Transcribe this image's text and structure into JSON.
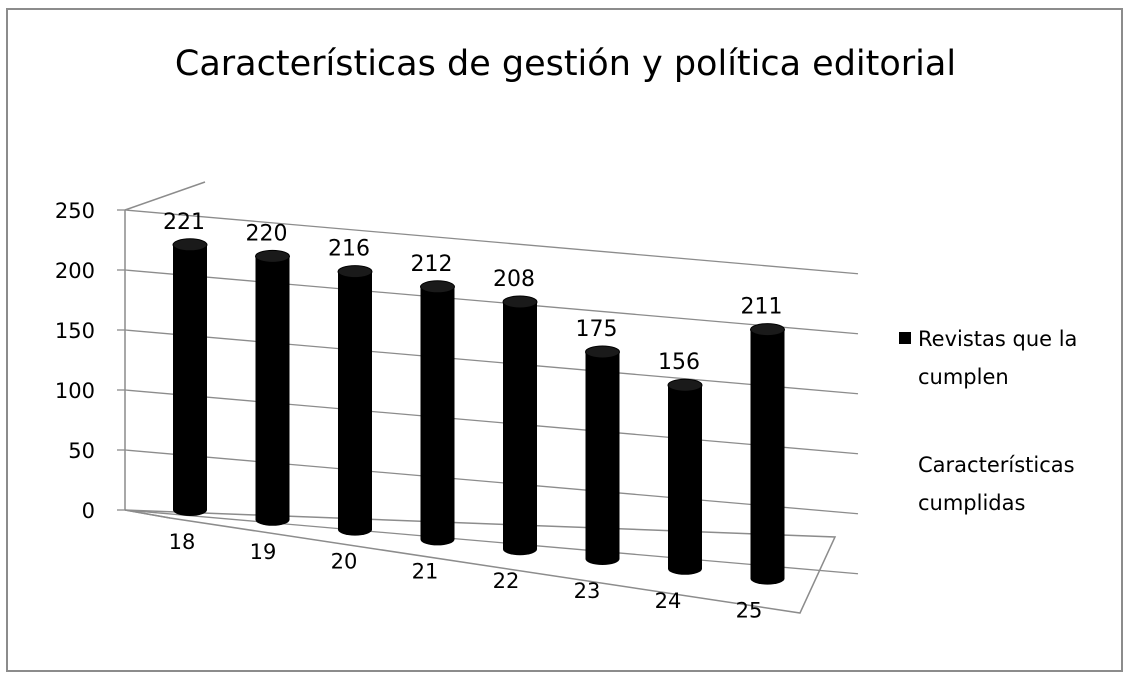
{
  "chart_data": {
    "type": "bar",
    "title": "Características de gestión y política editorial",
    "categories": [
      "18",
      "19",
      "20",
      "21",
      "22",
      "23",
      "24",
      "25"
    ],
    "series": [
      {
        "name": "Revistas que la cumplen",
        "values": [
          221,
          220,
          216,
          212,
          208,
          175,
          156,
          211
        ],
        "color": "#000000"
      }
    ],
    "series_name_lines": [
      "Revistas que la",
      "cumplen"
    ],
    "axis_title_lines": [
      "Características",
      "cumplidas"
    ],
    "ylim": [
      0,
      250
    ],
    "yticks": [
      0,
      50,
      100,
      150,
      200,
      250
    ],
    "grid": true,
    "legend": "right",
    "style": "3d-cylinder"
  }
}
